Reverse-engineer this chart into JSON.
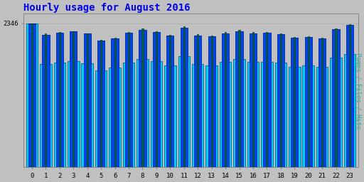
{
  "title": "Hourly usage for August 2016",
  "title_color": "#0000ee",
  "title_fontsize": 10,
  "background_color": "#c0c0c0",
  "plot_bg_color": "#c0c0c0",
  "ylabel_text": "Pages / Files / Hits",
  "ylabel_color": "#00bb99",
  "hours": [
    0,
    1,
    2,
    3,
    4,
    5,
    6,
    7,
    8,
    9,
    10,
    11,
    12,
    13,
    14,
    15,
    16,
    17,
    18,
    19,
    20,
    21,
    22,
    23
  ],
  "hits": [
    2346,
    1680,
    1710,
    1730,
    1690,
    1580,
    1620,
    1700,
    1760,
    1730,
    1660,
    1810,
    1680,
    1660,
    1720,
    1760,
    1720,
    1720,
    1700,
    1640,
    1660,
    1640,
    1790,
    1840
  ],
  "files": [
    2340,
    2160,
    2190,
    2210,
    2175,
    2060,
    2100,
    2190,
    2240,
    2205,
    2140,
    2275,
    2150,
    2130,
    2185,
    2220,
    2185,
    2190,
    2170,
    2105,
    2120,
    2095,
    2250,
    2320
  ],
  "pages": [
    2346,
    2175,
    2205,
    2220,
    2185,
    2070,
    2115,
    2205,
    2255,
    2220,
    2155,
    2290,
    2165,
    2145,
    2200,
    2235,
    2200,
    2205,
    2185,
    2120,
    2135,
    2110,
    2265,
    2335
  ],
  "hits_color": "#00ccff",
  "files_color": "#0044ee",
  "pages_color": "#006633",
  "ylim_max": 2500,
  "ylim_min": 0,
  "bar_width": 0.85,
  "font_family": "monospace",
  "grid_color": "#aaaaaa",
  "spine_color": "#888888",
  "tick_color": "#000000"
}
